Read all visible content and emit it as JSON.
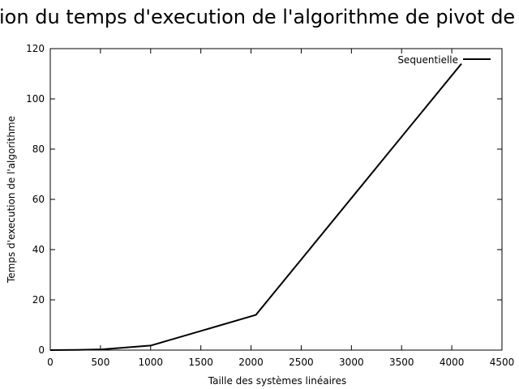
{
  "chart_data": {
    "type": "line",
    "title": "Evolution du temps d'execution de l'algorithme de pivot de Gauss",
    "xlabel": "Taille des systèmes linéaires",
    "ylabel": "Temps d'execution de l'algorithme",
    "xlim": [
      0,
      4500
    ],
    "ylim": [
      0,
      120
    ],
    "xticks": [
      0,
      500,
      1000,
      1500,
      2000,
      2500,
      3000,
      3500,
      4000,
      4500
    ],
    "yticks": [
      0,
      20,
      40,
      60,
      80,
      100,
      120
    ],
    "grid": false,
    "legend_position": "top-right",
    "series": [
      {
        "name": "Sequentielle",
        "color": "#000000",
        "x": [
          0,
          256,
          512,
          1000,
          2048,
          4096
        ],
        "y": [
          0,
          0.05,
          0.3,
          1.8,
          14,
          114
        ]
      }
    ]
  }
}
